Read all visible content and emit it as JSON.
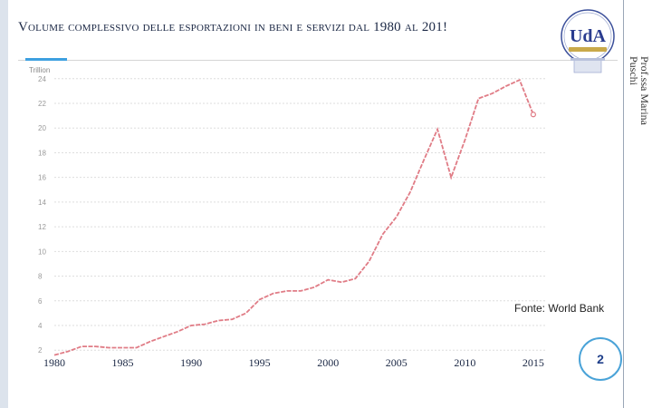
{
  "header": {
    "title": "Volume complessivo delle esportazioni in beni e servizi dal 1980 al 201!"
  },
  "author": "Prof.ssa Marina Puschi",
  "logo_text": "UdA",
  "source": "Fonte: World Bank",
  "page_number": "2",
  "colors": {
    "line": "#e07c86",
    "title": "#1a2744",
    "accent": "#3ea0e0",
    "grid": "#dedede"
  },
  "chart_data": {
    "type": "line",
    "title": "",
    "units_label": "Trillion",
    "xlabel": "",
    "ylabel": "",
    "y_ticks": [
      2,
      4,
      6,
      8,
      10,
      12,
      14,
      16,
      18,
      20,
      22,
      24
    ],
    "x_tick_labels": [
      {
        "year": 1980,
        "label": "1980"
      },
      {
        "year": 1985,
        "label": "1985"
      },
      {
        "year": 1990,
        "label": "1990"
      },
      {
        "year": 1995,
        "label": "1995"
      },
      {
        "year": 2000,
        "label": "2000"
      },
      {
        "year": 2005,
        "label": "2005"
      },
      {
        "year": 2010,
        "label": "2010"
      },
      {
        "year": 2015,
        "label": "2015"
      }
    ],
    "xlim": [
      1980,
      2016
    ],
    "ylim": [
      1.5,
      24.5
    ],
    "grid": true,
    "series": [
      {
        "name": "",
        "x": [
          1980,
          1981,
          1982,
          1983,
          1984,
          1985,
          1986,
          1987,
          1988,
          1989,
          1990,
          1991,
          1992,
          1993,
          1994,
          1995,
          1996,
          1997,
          1998,
          1999,
          2000,
          2001,
          2002,
          2003,
          2004,
          2005,
          2006,
          2007,
          2008,
          2009,
          2010,
          2011,
          2012,
          2013,
          2014,
          2015
        ],
        "values": [
          1.6,
          1.9,
          2.3,
          2.3,
          2.2,
          2.2,
          2.2,
          2.7,
          3.1,
          3.5,
          4.0,
          4.1,
          4.4,
          4.5,
          5.0,
          6.1,
          6.6,
          6.8,
          6.8,
          7.1,
          7.7,
          7.5,
          7.8,
          9.2,
          11.4,
          12.8,
          14.8,
          17.4,
          19.9,
          16.0,
          19.0,
          22.4,
          22.8,
          23.4,
          23.9,
          21.1
        ]
      }
    ]
  }
}
